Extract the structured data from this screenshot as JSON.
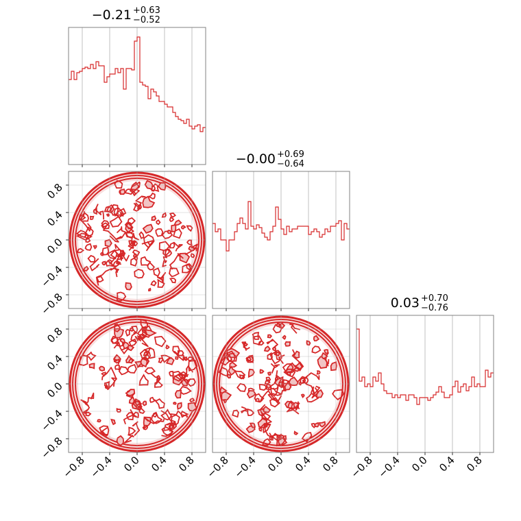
{
  "colors": {
    "series": "#d62728",
    "fill_light": "#f2c4c4",
    "grid": "#b0b0b0",
    "frame": "#808080"
  },
  "chart_data": [
    {
      "type": "histogram",
      "panel": "param-1",
      "title": {
        "main": "−0.21",
        "sup": "+0.63",
        "sub": "−0.52"
      },
      "xlim": [
        -1,
        1
      ],
      "bin_edges_start": -0.98,
      "bin_width": 0.04,
      "values": [
        0.62,
        0.68,
        0.62,
        0.67,
        0.68,
        0.7,
        0.71,
        0.7,
        0.73,
        0.7,
        0.75,
        0.72,
        0.72,
        0.6,
        0.64,
        0.66,
        0.66,
        0.7,
        0.67,
        0.7,
        0.55,
        0.7,
        0.7,
        0.69,
        0.9,
        0.93,
        0.6,
        0.58,
        0.57,
        0.48,
        0.55,
        0.53,
        0.5,
        0.46,
        0.46,
        0.44,
        0.42,
        0.42,
        0.38,
        0.35,
        0.33,
        0.32,
        0.3,
        0.33,
        0.28,
        0.26,
        0.28,
        0.29,
        0.24,
        0.27
      ],
      "grid": true
    },
    {
      "type": "histogram",
      "panel": "param-2",
      "title": {
        "main": "−0.00",
        "sup": "+0.69",
        "sub": "−0.64"
      },
      "xlim": [
        -1,
        1
      ],
      "bin_edges_start": -0.98,
      "bin_width": 0.04,
      "values": [
        0.62,
        0.56,
        0.58,
        0.5,
        0.5,
        0.42,
        0.5,
        0.5,
        0.56,
        0.62,
        0.66,
        0.62,
        0.58,
        0.78,
        0.6,
        0.58,
        0.61,
        0.59,
        0.55,
        0.52,
        0.5,
        0.56,
        0.6,
        0.74,
        0.65,
        0.58,
        0.54,
        0.6,
        0.56,
        0.58,
        0.58,
        0.6,
        0.6,
        0.6,
        0.6,
        0.54,
        0.56,
        0.58,
        0.56,
        0.52,
        0.54,
        0.58,
        0.56,
        0.6,
        0.6,
        0.62,
        0.64,
        0.5,
        0.62,
        0.58
      ],
      "grid": true
    },
    {
      "type": "histogram",
      "panel": "param-3",
      "title": {
        "main": "0.03",
        "sup": "+0.70",
        "sub": "−0.76"
      },
      "xlim": [
        -1,
        1
      ],
      "bin_edges_start": -0.98,
      "bin_width": 0.04,
      "values": [
        0.9,
        0.52,
        0.55,
        0.48,
        0.5,
        0.48,
        0.55,
        0.52,
        0.58,
        0.5,
        0.45,
        0.43,
        0.43,
        0.4,
        0.42,
        0.4,
        0.42,
        0.42,
        0.38,
        0.42,
        0.42,
        0.4,
        0.35,
        0.4,
        0.4,
        0.4,
        0.38,
        0.4,
        0.42,
        0.44,
        0.48,
        0.44,
        0.4,
        0.4,
        0.42,
        0.48,
        0.52,
        0.44,
        0.48,
        0.5,
        0.45,
        0.48,
        0.55,
        0.48,
        0.5,
        0.48,
        0.48,
        0.6,
        0.55,
        0.58
      ],
      "grid": true
    },
    {
      "type": "contour",
      "panel": "param-2-vs-param-1",
      "support": "unit-disk",
      "xlim": [
        -1,
        1
      ],
      "ylim": [
        -1,
        1
      ],
      "density_note": "uniform on disk, noisy contours"
    },
    {
      "type": "contour",
      "panel": "param-3-vs-param-1",
      "support": "unit-disk",
      "xlim": [
        -1,
        1
      ],
      "ylim": [
        -1,
        1
      ]
    },
    {
      "type": "contour",
      "panel": "param-3-vs-param-2",
      "support": "unit-disk",
      "xlim": [
        -1,
        1
      ],
      "ylim": [
        -1,
        1
      ]
    }
  ],
  "tick_values": [
    -0.8,
    -0.4,
    0.0,
    0.4,
    0.8
  ],
  "tick_labels": [
    "−0.8",
    "−0.4",
    "0.0",
    "0.4",
    "0.8"
  ]
}
